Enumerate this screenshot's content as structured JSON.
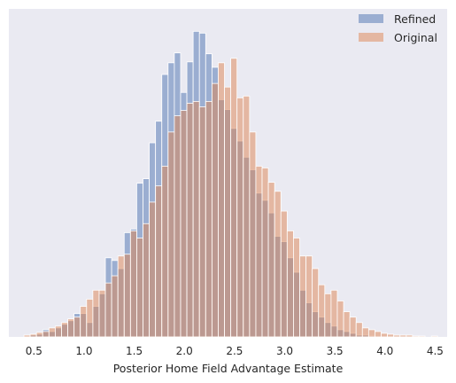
{
  "chart_data": {
    "type": "bar",
    "subtype": "overlaid-histogram",
    "title": "",
    "xlabel": "Posterior Home Field Advantage Estimate",
    "ylabel": "",
    "xlim": [
      0.25,
      4.62
    ],
    "ylim": [
      0,
      365
    ],
    "x_ticks": [
      0.5,
      1.0,
      1.5,
      2.0,
      2.5,
      3.0,
      3.5,
      4.0,
      4.5
    ],
    "x_tick_labels": [
      "0.5",
      "1.0",
      "1.5",
      "2.0",
      "2.5",
      "3.0",
      "3.5",
      "4.0",
      "4.5"
    ],
    "y_ticks_shown": false,
    "grid": false,
    "legend_position": "top-right",
    "bin_start": 0.4,
    "bin_width": 0.0625,
    "colors": {
      "background": "#eaeaf2",
      "refined": "#4c72b0",
      "original": "#dd8452",
      "overlap": "#8c7b9c",
      "bar_edge": "#ffffff"
    },
    "series": [
      {
        "name": "Refined",
        "color": "#4c72b0",
        "alpha": 0.5,
        "values": [
          0,
          2,
          3,
          8,
          6,
          10,
          14,
          18,
          26,
          26,
          16,
          34,
          48,
          88,
          85,
          76,
          116,
          120,
          171,
          176,
          216,
          240,
          292,
          305,
          316,
          272,
          306,
          340,
          338,
          315,
          300,
          264,
          253,
          232,
          218,
          200,
          186,
          160,
          152,
          138,
          112,
          106,
          88,
          72,
          52,
          38,
          28,
          22,
          16,
          12,
          8,
          6,
          4,
          2,
          2,
          1,
          0,
          0,
          0,
          0,
          0,
          0,
          0,
          0,
          0,
          0,
          0
        ]
      },
      {
        "name": "Original",
        "color": "#dd8452",
        "alpha": 0.5,
        "values": [
          2,
          3,
          5,
          6,
          10,
          12,
          16,
          20,
          22,
          34,
          42,
          52,
          52,
          60,
          68,
          90,
          92,
          118,
          110,
          126,
          150,
          168,
          190,
          228,
          246,
          252,
          260,
          262,
          256,
          262,
          282,
          305,
          278,
          310,
          266,
          268,
          228,
          190,
          188,
          172,
          162,
          140,
          118,
          110,
          90,
          90,
          76,
          58,
          48,
          52,
          40,
          28,
          22,
          16,
          10,
          8,
          6,
          4,
          3,
          2,
          2,
          2,
          1,
          1,
          0,
          1,
          0
        ]
      }
    ]
  }
}
